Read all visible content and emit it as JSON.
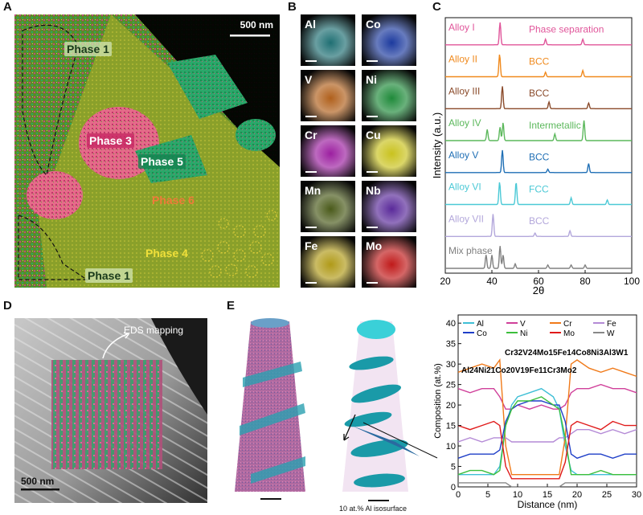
{
  "panel_labels": {
    "a": "A",
    "b": "B",
    "c": "C",
    "d": "D",
    "e": "E"
  },
  "panel_a": {
    "scalebar": "500 nm",
    "phases": [
      "Phase 1",
      "Phase 3",
      "Phase 5",
      "Phase 6",
      "Phase 4",
      "Phase 1"
    ]
  },
  "panel_b": {
    "elements": [
      {
        "name": "Al",
        "color": "#1f6f73"
      },
      {
        "name": "Co",
        "color": "#1c3a9e"
      },
      {
        "name": "V",
        "color": "#b0601c"
      },
      {
        "name": "Ni",
        "color": "#1f8a3a"
      },
      {
        "name": "Cr",
        "color": "#9c1fa0"
      },
      {
        "name": "Cu",
        "color": "#c9c21e"
      },
      {
        "name": "Mn",
        "color": "#4a5a1a"
      },
      {
        "name": "Nb",
        "color": "#5a2a9a"
      },
      {
        "name": "Fe",
        "color": "#b09a18"
      },
      {
        "name": "Mo",
        "color": "#c01a1a"
      }
    ]
  },
  "panel_c": {
    "chart_data": {
      "type": "line",
      "xlabel": "2θ",
      "ylabel": "Intensity (a.u.)",
      "xlim": [
        20,
        100
      ],
      "xticks": [
        "20",
        "40",
        "60",
        "80",
        "100"
      ],
      "series": [
        {
          "name": "Alloy I",
          "annotation": "Phase separation",
          "color": "#e0559a",
          "peaks": [
            [
              43.5,
              1.0
            ],
            [
              63,
              0.25
            ],
            [
              79,
              0.25
            ]
          ]
        },
        {
          "name": "Alloy II",
          "annotation": "BCC",
          "color": "#f08a1e",
          "peaks": [
            [
              43.3,
              1.0
            ],
            [
              63,
              0.2
            ],
            [
              79,
              0.28
            ]
          ]
        },
        {
          "name": "Alloy III",
          "annotation": "BCC",
          "color": "#8a4a2a",
          "peaks": [
            [
              44.5,
              1.0
            ],
            [
              64.5,
              0.3
            ],
            [
              81.5,
              0.25
            ]
          ]
        },
        {
          "name": "Alloy IV",
          "annotation": "Intermetallic",
          "color": "#5cb85c",
          "peaks": [
            [
              38,
              0.5
            ],
            [
              43.5,
              0.6
            ],
            [
              44.8,
              0.8
            ],
            [
              67,
              0.3
            ],
            [
              79.5,
              0.9
            ]
          ]
        },
        {
          "name": "Alloy V",
          "annotation": "BCC",
          "color": "#1f6fb5",
          "peaks": [
            [
              44.5,
              1.0
            ],
            [
              64,
              0.15
            ],
            [
              81.5,
              0.4
            ]
          ]
        },
        {
          "name": "Alloy VI",
          "annotation": "FCC",
          "color": "#4cc9d6",
          "peaks": [
            [
              43.3,
              1.0
            ],
            [
              50.4,
              1.0
            ],
            [
              74,
              0.3
            ],
            [
              89.5,
              0.2
            ]
          ]
        },
        {
          "name": "Alloy VII",
          "annotation": "BCC",
          "color": "#b3a7db",
          "peaks": [
            [
              40.5,
              1.0
            ],
            [
              58.5,
              0.15
            ],
            [
              73.5,
              0.25
            ]
          ]
        },
        {
          "name": "Mix phase",
          "annotation": "",
          "color": "#808080",
          "peaks": [
            [
              37.5,
              0.6
            ],
            [
              40,
              0.6
            ],
            [
              43.5,
              1.0
            ],
            [
              44.8,
              0.6
            ],
            [
              50,
              0.2
            ],
            [
              64,
              0.15
            ],
            [
              74,
              0.15
            ],
            [
              80,
              0.15
            ]
          ]
        }
      ]
    }
  },
  "panel_d": {
    "eds_label": "EDS mapping",
    "scalebar": "500 nm"
  },
  "panel_e": {
    "isosurface_label": "10 at.% Al isosurface",
    "composition_left": "Al24Ni21Co20V19Fe11Cr3Mo2",
    "composition_right": "Cr32V24Mo15Fe14Co8Ni3Al3W1",
    "chart_data": {
      "type": "line",
      "xlabel": "Distance (nm)",
      "ylabel": "Composition (at.%)",
      "xlim": [
        0,
        30
      ],
      "ylim": [
        0,
        42
      ],
      "xticks": [
        "0",
        "5",
        "10",
        "15",
        "20",
        "25",
        "30"
      ],
      "yticks": [
        "0",
        "5",
        "10",
        "15",
        "20",
        "25",
        "30",
        "35",
        "40"
      ],
      "x": [
        0,
        2,
        4,
        6,
        7,
        8,
        9,
        10,
        12,
        14,
        16,
        17,
        18,
        19,
        20,
        22,
        24,
        26,
        28,
        30
      ],
      "series": [
        {
          "name": "Al",
          "color": "#3fbfd6",
          "values": [
            3,
            3,
            3,
            3,
            5,
            15,
            20,
            22,
            23,
            24,
            22,
            19,
            10,
            4,
            3,
            3,
            3,
            3,
            3,
            3
          ]
        },
        {
          "name": "V",
          "color": "#d0409a",
          "values": [
            24,
            23,
            24,
            24,
            22,
            19,
            19,
            20,
            19,
            20,
            19,
            19,
            20,
            23,
            24,
            24,
            25,
            24,
            24,
            23
          ]
        },
        {
          "name": "Cr",
          "color": "#f07a1a",
          "values": [
            28,
            29,
            30,
            29,
            31,
            10,
            3,
            3,
            3,
            3,
            3,
            3,
            12,
            30,
            31,
            29,
            28,
            29,
            28,
            27
          ]
        },
        {
          "name": "Fe",
          "color": "#b48ad6",
          "values": [
            11,
            12,
            11,
            12,
            12,
            12,
            11,
            11,
            11,
            11,
            11,
            12,
            12,
            13,
            14,
            14,
            13,
            14,
            13,
            14
          ]
        },
        {
          "name": "Co",
          "color": "#1f3fc8",
          "values": [
            7,
            8,
            8,
            8,
            9,
            16,
            19,
            20,
            21,
            21,
            20,
            20,
            16,
            8,
            7,
            8,
            8,
            7,
            8,
            8
          ]
        },
        {
          "name": "Ni",
          "color": "#3cbf3c",
          "values": [
            3,
            4,
            4,
            3,
            4,
            15,
            19,
            21,
            21,
            22,
            20,
            19,
            12,
            3,
            3,
            3,
            4,
            3,
            3,
            3
          ]
        },
        {
          "name": "Mo",
          "color": "#e01a1a",
          "values": [
            15,
            14,
            15,
            16,
            15,
            5,
            2,
            2,
            2,
            2,
            2,
            2,
            6,
            15,
            16,
            15,
            14,
            16,
            15,
            15
          ]
        },
        {
          "name": "W",
          "color": "#888888",
          "values": [
            1,
            1,
            1,
            1,
            1,
            1,
            0,
            0,
            0,
            0,
            0,
            0,
            1,
            1,
            1,
            1,
            1,
            1,
            1,
            1
          ]
        }
      ]
    }
  }
}
